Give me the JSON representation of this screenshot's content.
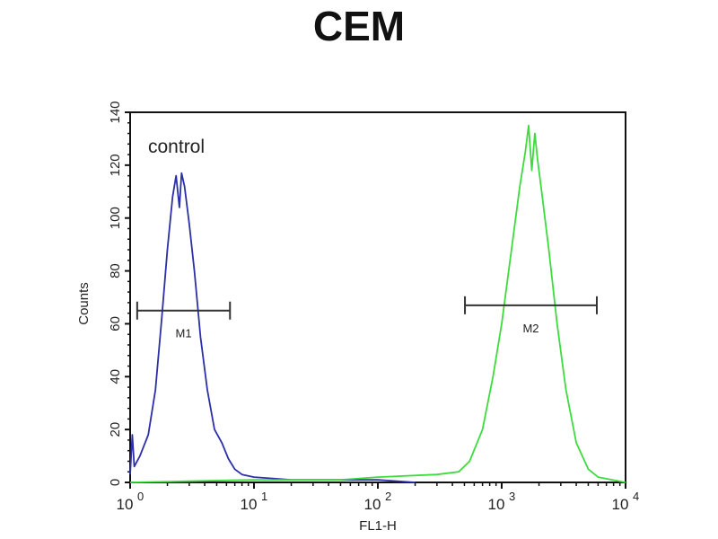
{
  "chart_data": {
    "type": "line",
    "title": "CEM",
    "xlabel": "FL1-H",
    "ylabel": "Counts",
    "x_scale": "log",
    "xlim": [
      1,
      10000
    ],
    "ylim": [
      0,
      140
    ],
    "x_ticks": [
      {
        "base": "10",
        "exp": "0"
      },
      {
        "base": "10",
        "exp": "1"
      },
      {
        "base": "10",
        "exp": "2"
      },
      {
        "base": "10",
        "exp": "3"
      },
      {
        "base": "10",
        "exp": "4"
      }
    ],
    "y_ticks": [
      "0",
      "20",
      "40",
      "60",
      "80",
      "100",
      "120",
      "140"
    ],
    "annotation": "control",
    "series": [
      {
        "color": "#2b2fa8",
        "points": [
          [
            1,
            3
          ],
          [
            1.04,
            18
          ],
          [
            1.08,
            6
          ],
          [
            1.2,
            10
          ],
          [
            1.4,
            18
          ],
          [
            1.6,
            35
          ],
          [
            1.8,
            62
          ],
          [
            2.0,
            88
          ],
          [
            2.2,
            108
          ],
          [
            2.35,
            116
          ],
          [
            2.5,
            104
          ],
          [
            2.6,
            117
          ],
          [
            2.75,
            112
          ],
          [
            3.0,
            98
          ],
          [
            3.3,
            80
          ],
          [
            3.7,
            55
          ],
          [
            4.2,
            35
          ],
          [
            4.8,
            20
          ],
          [
            5.5,
            15
          ],
          [
            6.2,
            9
          ],
          [
            7,
            5
          ],
          [
            8,
            3
          ],
          [
            10,
            2
          ],
          [
            20,
            1
          ],
          [
            50,
            1
          ],
          [
            100,
            1
          ],
          [
            200,
            0
          ]
        ]
      },
      {
        "color": "#3ddc3d",
        "points": [
          [
            1,
            0
          ],
          [
            10,
            1
          ],
          [
            50,
            1
          ],
          [
            100,
            2
          ],
          [
            300,
            3
          ],
          [
            450,
            4
          ],
          [
            550,
            8
          ],
          [
            700,
            20
          ],
          [
            850,
            40
          ],
          [
            1000,
            60
          ],
          [
            1200,
            88
          ],
          [
            1400,
            112
          ],
          [
            1550,
            125
          ],
          [
            1650,
            135
          ],
          [
            1750,
            118
          ],
          [
            1850,
            132
          ],
          [
            1950,
            122
          ],
          [
            2100,
            110
          ],
          [
            2400,
            88
          ],
          [
            2800,
            60
          ],
          [
            3300,
            35
          ],
          [
            4000,
            15
          ],
          [
            5000,
            5
          ],
          [
            6000,
            2
          ],
          [
            10000,
            0
          ]
        ]
      }
    ],
    "markers": [
      {
        "label": "M1",
        "x_range": [
          1.14,
          6.4
        ],
        "y": 65
      },
      {
        "label": "M2",
        "x_range": [
          505,
          5860
        ],
        "y": 67
      }
    ],
    "grid": false
  }
}
